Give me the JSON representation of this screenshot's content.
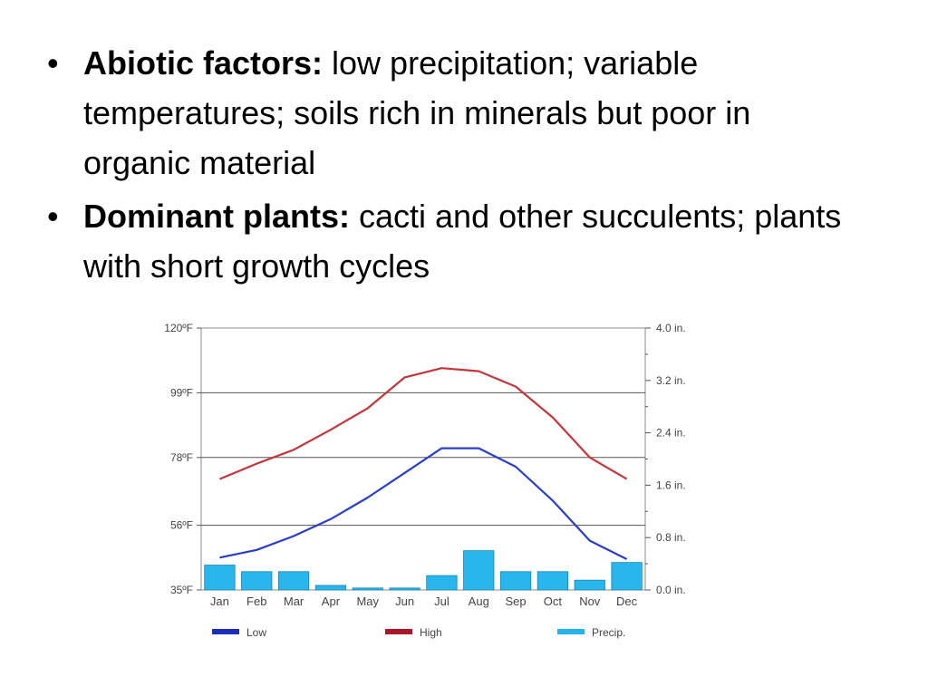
{
  "bullets": [
    {
      "heading": "Abiotic factors:",
      "text": " low precipitation; variable temperatures; soils rich in minerals but poor in organic material"
    },
    {
      "heading": "Dominant plants:",
      "text": " cacti and other succulents; plants with short growth cycles"
    }
  ],
  "chart_data": {
    "type": "line+bar",
    "categories": [
      "Jan",
      "Feb",
      "Mar",
      "Apr",
      "May",
      "Jun",
      "Jul",
      "Aug",
      "Sep",
      "Oct",
      "Nov",
      "Dec"
    ],
    "left_axis": {
      "unit": "°F",
      "ylim": [
        35,
        120
      ],
      "ticks": [
        "120ºF",
        "99ºF",
        "78ºF",
        "56ºF",
        "35ºF"
      ],
      "tick_values": [
        120,
        99,
        78,
        56,
        35
      ]
    },
    "right_axis": {
      "unit": "in.",
      "ylim": [
        0.0,
        4.0
      ],
      "ticks": [
        "4.0 in.",
        "3.2 in.",
        "2.4 in.",
        "1.6 in.",
        "0.8 in.",
        "0.0 in."
      ],
      "tick_values": [
        4.0,
        3.2,
        2.4,
        1.6,
        0.8,
        0.0
      ]
    },
    "series": [
      {
        "name": "Low",
        "axis": "left",
        "kind": "line",
        "color": "#2b3fc6",
        "values": [
          45.5,
          48,
          52.5,
          58,
          65,
          73,
          81,
          81,
          75,
          64,
          51,
          45
        ]
      },
      {
        "name": "High",
        "axis": "left",
        "kind": "line",
        "color": "#c2363c",
        "values": [
          71,
          76,
          80.5,
          87,
          94,
          104,
          107,
          106,
          101,
          91,
          78,
          71
        ]
      },
      {
        "name": "Precip.",
        "axis": "right",
        "kind": "bar",
        "color": "#29b6ec",
        "values": [
          0.38,
          0.28,
          0.28,
          0.07,
          0.03,
          0.03,
          0.22,
          0.6,
          0.28,
          0.28,
          0.15,
          0.42
        ]
      }
    ],
    "grid": true,
    "legend": [
      "Low",
      "High",
      "Precip."
    ],
    "legend_position": "bottom"
  }
}
